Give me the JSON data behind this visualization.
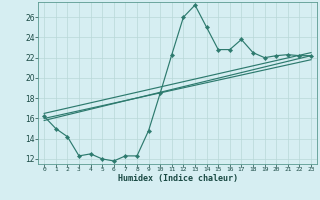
{
  "xlabel": "Humidex (Indice chaleur)",
  "bg_color": "#d6eef2",
  "line_color": "#2d7a6e",
  "grid_color": "#b8d8d8",
  "xlim": [
    -0.5,
    23.5
  ],
  "ylim": [
    11.5,
    27.5
  ],
  "yticks": [
    12,
    14,
    16,
    18,
    20,
    22,
    24,
    26
  ],
  "xticks": [
    0,
    1,
    2,
    3,
    4,
    5,
    6,
    7,
    8,
    9,
    10,
    11,
    12,
    13,
    14,
    15,
    16,
    17,
    18,
    19,
    20,
    21,
    22,
    23
  ],
  "series1_x": [
    0,
    1,
    2,
    3,
    4,
    5,
    6,
    7,
    8,
    9,
    10,
    11,
    12,
    13,
    14,
    15,
    16,
    17,
    18,
    19,
    20,
    21,
    22,
    23
  ],
  "series1_y": [
    16.2,
    15.0,
    14.2,
    12.3,
    12.5,
    12.0,
    11.8,
    12.3,
    12.3,
    14.8,
    18.5,
    22.3,
    26.0,
    27.2,
    25.0,
    22.8,
    22.8,
    23.8,
    22.5,
    22.0,
    22.2,
    22.3,
    22.2,
    22.2
  ],
  "series2_x": [
    0,
    23
  ],
  "series2_y": [
    15.8,
    22.2
  ],
  "series3_x": [
    0,
    23
  ],
  "series3_y": [
    16.5,
    22.5
  ],
  "series4_x": [
    0,
    23
  ],
  "series4_y": [
    16.0,
    21.8
  ]
}
